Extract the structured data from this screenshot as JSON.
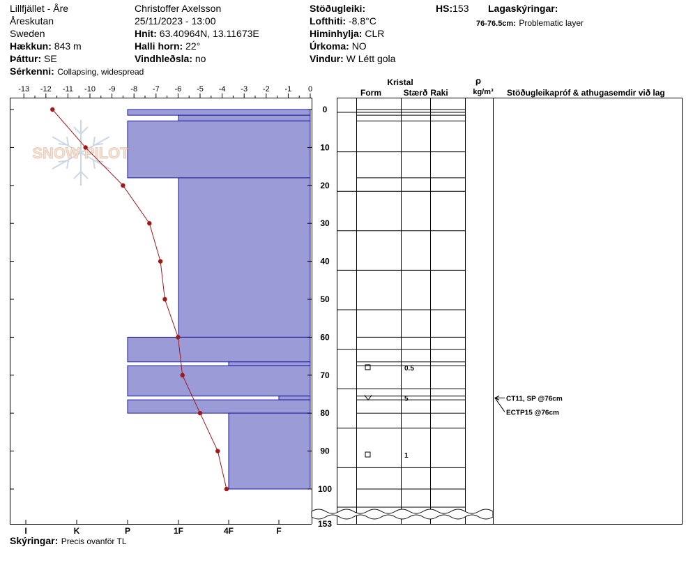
{
  "header": {
    "location": "Lillfjället - Åre",
    "area": "Åreskutan",
    "country": "Sweden",
    "elevation_label": "Hækkun:",
    "elevation_value": "843 m",
    "aspect_label": "Þáttur:",
    "aspect_value": "SE",
    "features_label": "Sérkenni:",
    "features_value": "Collapsing, widespread",
    "observer": "Christoffer Axelsson",
    "datetime": "25/11/2023 - 13:00",
    "coords_label": "Hnit:",
    "coords_value": "63.40964N, 13.11673E",
    "slope_label": "Halli horn:",
    "slope_value": "22°",
    "wind_loading_label": "Vindhleðsla:",
    "wind_loading_value": "no",
    "stability_label": "Stöðugleiki:",
    "air_temp_label": "Lofthiti:",
    "air_temp_value": "-8.8°C",
    "sky_label": "Himinhylja:",
    "sky_value": "CLR",
    "precip_label": "Úrkoma:",
    "precip_value": "NO",
    "wind_label": "Vindur:",
    "wind_value": "W Létt gola",
    "hs_label": "HS:",
    "hs_value": "153",
    "layer_notes_label": "Lagaskýringar:",
    "layer_note_range": "76-76.5cm:",
    "layer_note_text": "Problematic layer"
  },
  "footer": {
    "notes_label": "Skýringar:",
    "notes_value": "Precis ovanför TL"
  },
  "logo": {
    "text": "SNOW PILOT"
  },
  "columns": {
    "crystal_header": "Kristal",
    "form_header": "Form",
    "size_header": "Stærð",
    "moisture_header": "Raki",
    "density_symbol": "ρ",
    "density_unit": "kg/m³",
    "tests_header": "Stöðugleikapróf & athugasemdir við lag"
  },
  "chart_data": {
    "type": "line",
    "temperature_axis": {
      "ticks": [
        -13,
        -12,
        -11,
        -10,
        -9,
        -8,
        -7,
        -6,
        -5,
        -4,
        -3,
        -2,
        -1,
        0
      ],
      "range": [
        -13.5,
        0
      ]
    },
    "hardness_axis": {
      "ticks": [
        "I",
        "K",
        "P",
        "1F",
        "4F",
        "F"
      ]
    },
    "depth_axis": {
      "ticks": [
        "0",
        "10",
        "20",
        "30",
        "40",
        "50",
        "60",
        "70",
        "80",
        "90",
        "100"
      ],
      "bottom_label": "153",
      "range_cm": [
        0,
        110
      ]
    },
    "temperature_profile": [
      {
        "depth": 0,
        "temp": -11.7
      },
      {
        "depth": 10,
        "temp": -10.2
      },
      {
        "depth": 20,
        "temp": -8.5
      },
      {
        "depth": 30,
        "temp": -7.3
      },
      {
        "depth": 40,
        "temp": -6.8
      },
      {
        "depth": 50,
        "temp": -6.6
      },
      {
        "depth": 60,
        "temp": -6.0
      },
      {
        "depth": 70,
        "temp": -5.8
      },
      {
        "depth": 80,
        "temp": -5.0
      },
      {
        "depth": 90,
        "temp": -4.2
      },
      {
        "depth": 100,
        "temp": -3.8
      }
    ],
    "layers": [
      {
        "top": 0,
        "bottom": 1.5,
        "hardness": "P"
      },
      {
        "top": 1.5,
        "bottom": 3,
        "hardness": "1F"
      },
      {
        "top": 3,
        "bottom": 18,
        "hardness": "P"
      },
      {
        "top": 18,
        "bottom": 60,
        "hardness": "1F"
      },
      {
        "top": 60,
        "bottom": 66.5,
        "hardness": "P"
      },
      {
        "top": 66.5,
        "bottom": 67.5,
        "hardness": "4F"
      },
      {
        "top": 67.5,
        "bottom": 75.5,
        "hardness": "P"
      },
      {
        "top": 75.5,
        "bottom": 76.5,
        "hardness": "F"
      },
      {
        "top": 76.5,
        "bottom": 80,
        "hardness": "P"
      },
      {
        "top": 80,
        "bottom": 100,
        "hardness": "4F"
      }
    ],
    "layer_boundaries": [
      0,
      1.5,
      3,
      18,
      60,
      66.5,
      67.5,
      75.5,
      76.5,
      80,
      100
    ],
    "crystals": [
      {
        "depth": 68,
        "form": "square",
        "size": "0.5"
      },
      {
        "depth": 76,
        "form": "v",
        "size": "5"
      },
      {
        "depth": 91,
        "form": "square",
        "size": "1"
      }
    ],
    "tests": [
      {
        "depth": 76,
        "label": "CT11, SP @76cm"
      },
      {
        "depth": 76,
        "label": "ECTP15 @76cm"
      }
    ],
    "colors": {
      "fill": "#9b9bd7",
      "edge": "#1a1a9a",
      "temperature": "#a01818"
    }
  }
}
